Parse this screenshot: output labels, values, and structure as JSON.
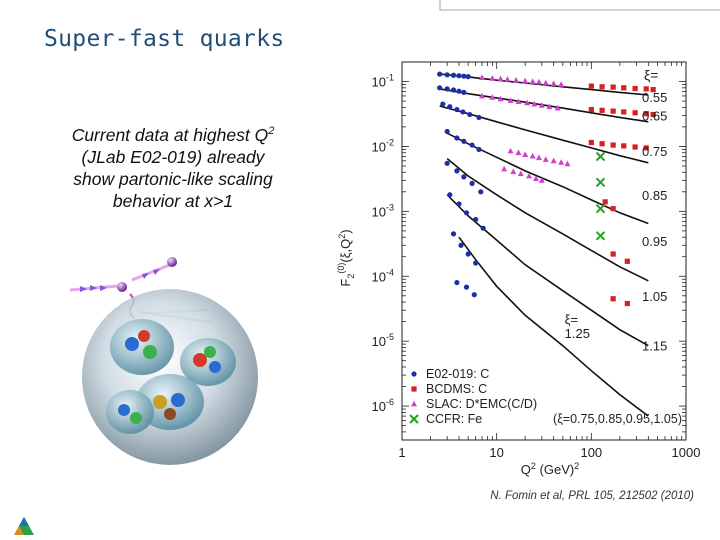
{
  "slide": {
    "title": "Super-fast quarks",
    "body": {
      "line1_pre": "Current data at highest Q",
      "line1_sup": "2",
      "line2": "(JLab E02-019) already",
      "line3": "show partonic-like scaling",
      "line4": "behavior at x>1"
    },
    "citation": "N. Fomin et al, PRL 105, 212502 (2010)"
  },
  "chart_data": {
    "type": "scatter",
    "xscale": "log",
    "yscale": "log",
    "xlim": [
      1,
      1000
    ],
    "ylim": [
      3e-07,
      0.2
    ],
    "xticks": [
      {
        "value": 1,
        "label": "1"
      },
      {
        "value": 10,
        "label": "10"
      },
      {
        "value": 100,
        "label": "100"
      },
      {
        "value": 1000,
        "label": "1000"
      }
    ],
    "yticks": [
      {
        "value": 0.1,
        "base": "10",
        "exp": "-1"
      },
      {
        "value": 0.01,
        "base": "10",
        "exp": "-2"
      },
      {
        "value": 0.001,
        "base": "10",
        "exp": "-3"
      },
      {
        "value": 0.0001,
        "base": "10",
        "exp": "-4"
      },
      {
        "value": 1e-05,
        "base": "10",
        "exp": "-5"
      },
      {
        "value": 1e-06,
        "base": "10",
        "exp": "-6"
      }
    ],
    "xlabel": {
      "base": "Q",
      "sup": "2",
      "unit": " (GeV)",
      "unit_sup": "2"
    },
    "ylabel": {
      "pre": "F",
      "sub": "2",
      "sup": "(0)",
      "post": "(ξ,Q",
      "sup2": "2",
      "close": ")"
    },
    "xi_prefix": "ξ=",
    "curve_labels": [
      {
        "label": "0.55",
        "y": 0.085
      },
      {
        "label": "0.65",
        "y": 0.03
      },
      {
        "label": "0.75",
        "y": 0.0085
      },
      {
        "label": "0.85",
        "y": 0.0018
      },
      {
        "label": "0.95",
        "y": 0.00035
      },
      {
        "label": "1.05",
        "y": 5e-05
      },
      {
        "label": "1.15",
        "y": 8.5e-06
      }
    ],
    "inner_label": {
      "label": "1.25",
      "x": 70,
      "y": 1.2e-05
    },
    "curves": [
      {
        "xi": "0.55",
        "points": [
          [
            2.5,
            0.13
          ],
          [
            5,
            0.118
          ],
          [
            10,
            0.105
          ],
          [
            20,
            0.095
          ],
          [
            50,
            0.083
          ],
          [
            100,
            0.075
          ],
          [
            200,
            0.068
          ],
          [
            400,
            0.062
          ]
        ]
      },
      {
        "xi": "0.65",
        "points": [
          [
            2.5,
            0.077
          ],
          [
            5,
            0.065
          ],
          [
            10,
            0.056
          ],
          [
            20,
            0.048
          ],
          [
            50,
            0.039
          ],
          [
            100,
            0.033
          ],
          [
            200,
            0.028
          ],
          [
            400,
            0.024
          ]
        ]
      },
      {
        "xi": "0.75",
        "points": [
          [
            2.5,
            0.042
          ],
          [
            5,
            0.032
          ],
          [
            10,
            0.024
          ],
          [
            20,
            0.018
          ],
          [
            50,
            0.0125
          ],
          [
            100,
            0.0095
          ],
          [
            200,
            0.0072
          ],
          [
            400,
            0.0056
          ]
        ]
      },
      {
        "xi": "0.85",
        "points": [
          [
            3,
            0.016
          ],
          [
            5,
            0.011
          ],
          [
            10,
            0.0068
          ],
          [
            20,
            0.0042
          ],
          [
            50,
            0.0024
          ],
          [
            100,
            0.0015
          ],
          [
            200,
            0.00095
          ],
          [
            400,
            0.00065
          ]
        ]
      },
      {
        "xi": "0.95",
        "points": [
          [
            3,
            0.0065
          ],
          [
            5,
            0.0035
          ],
          [
            10,
            0.0018
          ],
          [
            20,
            0.00095
          ],
          [
            50,
            0.00045
          ],
          [
            100,
            0.00025
          ],
          [
            200,
            0.00014
          ],
          [
            400,
            8.5e-05
          ]
        ]
      },
      {
        "xi": "1.05",
        "points": [
          [
            3,
            0.0018
          ],
          [
            5,
            0.00085
          ],
          [
            10,
            0.00036
          ],
          [
            20,
            0.00015
          ],
          [
            50,
            6e-05
          ],
          [
            100,
            3e-05
          ],
          [
            200,
            1.5e-05
          ],
          [
            400,
            8.5e-06
          ]
        ]
      },
      {
        "xi": "1.15",
        "points": [
          [
            4,
            0.0004
          ],
          [
            6,
            0.00018
          ],
          [
            10,
            7e-05
          ],
          [
            20,
            2.5e-05
          ],
          [
            50,
            8.5e-06
          ],
          [
            100,
            3.5e-06
          ],
          [
            200,
            1.5e-06
          ],
          [
            400,
            7e-07
          ]
        ]
      }
    ],
    "series": [
      {
        "name": "E02-019: C",
        "marker": "circle",
        "color": "#1a2fa8",
        "points": [
          [
            2.5,
            0.13
          ],
          [
            3,
            0.127
          ],
          [
            3.5,
            0.125
          ],
          [
            4,
            0.123
          ],
          [
            4.5,
            0.121
          ],
          [
            5,
            0.119
          ],
          [
            2.5,
            0.08
          ],
          [
            3,
            0.077
          ],
          [
            3.5,
            0.074
          ],
          [
            4,
            0.071
          ],
          [
            4.5,
            0.068
          ],
          [
            2.7,
            0.045
          ],
          [
            3.2,
            0.041
          ],
          [
            3.8,
            0.037
          ],
          [
            4.4,
            0.034
          ],
          [
            5.2,
            0.031
          ],
          [
            6.5,
            0.028
          ],
          [
            3,
            0.017
          ],
          [
            3.8,
            0.0135
          ],
          [
            4.5,
            0.012
          ],
          [
            5.5,
            0.0105
          ],
          [
            6.5,
            0.009
          ],
          [
            3,
            0.0055
          ],
          [
            3.8,
            0.0042
          ],
          [
            4.5,
            0.0034
          ],
          [
            5.5,
            0.0027
          ],
          [
            6.8,
            0.002
          ],
          [
            3.2,
            0.0018
          ],
          [
            4,
            0.0013
          ],
          [
            4.8,
            0.00095
          ],
          [
            6,
            0.00075
          ],
          [
            7.2,
            0.00055
          ],
          [
            3.5,
            0.00045
          ],
          [
            4.2,
            0.0003
          ],
          [
            5,
            0.00022
          ],
          [
            6,
            0.00016
          ],
          [
            3.8,
            8e-05
          ],
          [
            4.8,
            6.8e-05
          ],
          [
            5.8,
            5.2e-05
          ]
        ]
      },
      {
        "name": "BCDMS: C",
        "marker": "square",
        "color": "#d42020",
        "points": [
          [
            100,
            0.085
          ],
          [
            130,
            0.083
          ],
          [
            170,
            0.082
          ],
          [
            220,
            0.08
          ],
          [
            290,
            0.078
          ],
          [
            380,
            0.077
          ],
          [
            450,
            0.075
          ],
          [
            100,
            0.037
          ],
          [
            130,
            0.036
          ],
          [
            170,
            0.035
          ],
          [
            220,
            0.034
          ],
          [
            290,
            0.033
          ],
          [
            380,
            0.032
          ],
          [
            450,
            0.031
          ],
          [
            100,
            0.0115
          ],
          [
            130,
            0.011
          ],
          [
            170,
            0.0105
          ],
          [
            220,
            0.0102
          ],
          [
            290,
            0.0098
          ],
          [
            380,
            0.0095
          ],
          [
            140,
            0.0014
          ],
          [
            170,
            0.0011
          ],
          [
            170,
            0.00022
          ],
          [
            240,
            0.00017
          ],
          [
            170,
            4.5e-05
          ],
          [
            240,
            3.8e-05
          ]
        ]
      },
      {
        "name": "SLAC: D*EMC(C/D)",
        "marker": "triangle",
        "color": "#d040d0",
        "points": [
          [
            7,
            0.115
          ],
          [
            9,
            0.112
          ],
          [
            11,
            0.11
          ],
          [
            13,
            0.108
          ],
          [
            16,
            0.105
          ],
          [
            20,
            0.102
          ],
          [
            24,
            0.1
          ],
          [
            28,
            0.098
          ],
          [
            33,
            0.095
          ],
          [
            40,
            0.093
          ],
          [
            48,
            0.09
          ],
          [
            7,
            0.06
          ],
          [
            9,
            0.057
          ],
          [
            11,
            0.054
          ],
          [
            14,
            0.051
          ],
          [
            17,
            0.049
          ],
          [
            21,
            0.047
          ],
          [
            25,
            0.045
          ],
          [
            30,
            0.043
          ],
          [
            36,
            0.041
          ],
          [
            44,
            0.039
          ],
          [
            14,
            0.0085
          ],
          [
            17,
            0.008
          ],
          [
            20,
            0.0075
          ],
          [
            24,
            0.0071
          ],
          [
            28,
            0.0067
          ],
          [
            33,
            0.0063
          ],
          [
            40,
            0.006
          ],
          [
            48,
            0.0057
          ],
          [
            56,
            0.0054
          ],
          [
            12,
            0.0045
          ],
          [
            15,
            0.0041
          ],
          [
            18,
            0.0038
          ],
          [
            22,
            0.0035
          ],
          [
            26,
            0.0032
          ],
          [
            30,
            0.003
          ]
        ]
      },
      {
        "name": "CCFR: Fe",
        "marker": "cross",
        "color": "#1ca81c",
        "points": [
          [
            125,
            0.007
          ],
          [
            125,
            0.0028
          ],
          [
            125,
            0.0011
          ],
          [
            125,
            0.00042
          ]
        ]
      }
    ],
    "ccfr_note": "(ξ=0.75,0.85,0.95,1.05)",
    "legend_position": "bottom-left",
    "grid": false
  },
  "illustration": {
    "name": "nucleus-with-quarks"
  },
  "logo": {
    "name": "triangle-logo"
  }
}
